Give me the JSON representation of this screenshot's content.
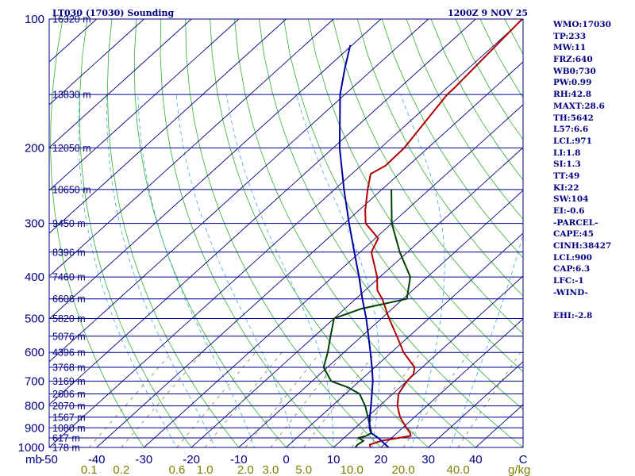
{
  "chart_data": {
    "type": "line",
    "subtype": "skew-T log-P sounding",
    "title": "LT030 (17030) Sounding",
    "time_label": "1200Z  9 NOV 25",
    "xlabel": "°C",
    "x_unit_label": "mb",
    "mixing_ratio_unit": "g/kg",
    "temperature_range_c": [
      -50,
      50
    ],
    "pressure_range_mb": [
      1000,
      100
    ],
    "temperature_ticks": [
      {
        "v": -50,
        "label": "-50"
      },
      {
        "v": -40,
        "label": "-40"
      },
      {
        "v": -30,
        "label": "-30"
      },
      {
        "v": -20,
        "label": "-20"
      },
      {
        "v": -10,
        "label": "-10"
      },
      {
        "v": 0,
        "label": "0"
      },
      {
        "v": 10,
        "label": "10"
      },
      {
        "v": 20,
        "label": "20"
      },
      {
        "v": 30,
        "label": "30"
      },
      {
        "v": 40,
        "label": "40"
      },
      {
        "v": 50,
        "label": "C"
      }
    ],
    "pressure_ticks": [
      {
        "p": 100,
        "label": "100"
      },
      {
        "p": 200,
        "label": "200"
      },
      {
        "p": 300,
        "label": "300"
      },
      {
        "p": 400,
        "label": "400"
      },
      {
        "p": 500,
        "label": "500"
      },
      {
        "p": 600,
        "label": "600"
      },
      {
        "p": 700,
        "label": "700"
      },
      {
        "p": 800,
        "label": "800"
      },
      {
        "p": 900,
        "label": "900"
      },
      {
        "p": 1000,
        "label": "1000"
      }
    ],
    "height_levels": [
      {
        "p": 100,
        "label": "16320 m"
      },
      {
        "p": 150,
        "label": "13830 m"
      },
      {
        "p": 200,
        "label": "12050 m"
      },
      {
        "p": 250,
        "label": "10650 m"
      },
      {
        "p": 300,
        "label": "9450 m"
      },
      {
        "p": 350,
        "label": "8396 m"
      },
      {
        "p": 400,
        "label": "7460 m"
      },
      {
        "p": 450,
        "label": "6606 m"
      },
      {
        "p": 500,
        "label": "5820 m"
      },
      {
        "p": 550,
        "label": "5076 m"
      },
      {
        "p": 600,
        "label": "4396 m"
      },
      {
        "p": 650,
        "label": "3768 m"
      },
      {
        "p": 700,
        "label": "3169 m"
      },
      {
        "p": 750,
        "label": "2606 m"
      },
      {
        "p": 800,
        "label": "2070 m"
      },
      {
        "p": 850,
        "label": "1567 m"
      },
      {
        "p": 900,
        "label": "1080 m"
      },
      {
        "p": 950,
        "label": "617 m"
      },
      {
        "p": 1000,
        "label": "178 m"
      }
    ],
    "mixing_ratio_ticks": [
      {
        "w": 0.1,
        "label": "0.1"
      },
      {
        "w": 0.2,
        "label": "0.2"
      },
      {
        "w": 0.6,
        "label": "0.6"
      },
      {
        "w": 1.0,
        "label": "1.0"
      },
      {
        "w": 2.0,
        "label": "2.0"
      },
      {
        "w": 3.0,
        "label": "3.0"
      },
      {
        "w": 5.0,
        "label": "5.0"
      },
      {
        "w": 10.0,
        "label": "10.0"
      },
      {
        "w": 20.0,
        "label": "20.0"
      },
      {
        "w": 40.0,
        "label": "40.0"
      }
    ],
    "series": [
      {
        "name": "Temperature",
        "color": "#b00000",
        "points": [
          [
            1000,
            17.8
          ],
          [
            985,
            17.0
          ],
          [
            965,
            18.6
          ],
          [
            940,
            23.6
          ],
          [
            925,
            22.8
          ],
          [
            900,
            20.8
          ],
          [
            850,
            17.0
          ],
          [
            800,
            13.8
          ],
          [
            750,
            11.2
          ],
          [
            700,
            10.0
          ],
          [
            675,
            9.8
          ],
          [
            650,
            8.4
          ],
          [
            600,
            2.6
          ],
          [
            550,
            -2.6
          ],
          [
            500,
            -8.4
          ],
          [
            450,
            -14.4
          ],
          [
            430,
            -17.4
          ],
          [
            400,
            -20.6
          ],
          [
            350,
            -27.6
          ],
          [
            325,
            -29.4
          ],
          [
            300,
            -35.5
          ],
          [
            280,
            -38.6
          ],
          [
            250,
            -43.0
          ],
          [
            230,
            -46.0
          ],
          [
            220,
            -44.8
          ],
          [
            200,
            -45.0
          ],
          [
            150,
            -48.4
          ],
          [
            145,
            -48.4
          ],
          [
            100,
            -50.2
          ]
        ]
      },
      {
        "name": "Dewpoint",
        "color": "#004000",
        "points": [
          [
            1000,
            14.6
          ],
          [
            985,
            14.4
          ],
          [
            965,
            14.8
          ],
          [
            950,
            13.0
          ],
          [
            940,
            14.2
          ],
          [
            925,
            14.6
          ],
          [
            900,
            13.2
          ],
          [
            850,
            10.2
          ],
          [
            800,
            7.0
          ],
          [
            750,
            3.0
          ],
          [
            725,
            -0.8
          ],
          [
            700,
            -6.0
          ],
          [
            650,
            -10.8
          ],
          [
            600,
            -13.4
          ],
          [
            550,
            -16.6
          ],
          [
            500,
            -20.0
          ],
          [
            475,
            -16.6
          ],
          [
            450,
            -9.2
          ],
          [
            400,
            -13.6
          ],
          [
            350,
            -21.6
          ],
          [
            300,
            -30.0
          ],
          [
            250,
            -38.0
          ]
        ]
      },
      {
        "name": "Parcel",
        "color": "#0000a0",
        "points": [
          [
            1000,
            21.6
          ],
          [
            950,
            17.2
          ],
          [
            925,
            14.5
          ],
          [
            900,
            13.0
          ],
          [
            850,
            10.6
          ],
          [
            800,
            8.2
          ],
          [
            750,
            5.6
          ],
          [
            700,
            2.8
          ],
          [
            650,
            -0.6
          ],
          [
            600,
            -4.4
          ],
          [
            550,
            -8.6
          ],
          [
            500,
            -13.2
          ],
          [
            450,
            -18.6
          ],
          [
            400,
            -24.4
          ],
          [
            350,
            -31.2
          ],
          [
            300,
            -39.0
          ],
          [
            250,
            -48.0
          ],
          [
            200,
            -58.6
          ],
          [
            150,
            -71.0
          ],
          [
            130,
            -76.2
          ],
          [
            115,
            -80.4
          ]
        ]
      }
    ]
  },
  "indices": [
    "WMO:17030",
    "TP:233",
    "MW:11",
    "FRZ:640",
    "WB0:730",
    "PW:0.99",
    "RH:42.8",
    "MAXT:28.6",
    "TH:5642",
    "L57:6.6",
    "LCL:971",
    "LI:1.8",
    "SI:1.3",
    "TT:49",
    "KI:22",
    "SW:104",
    "EI:-0.6",
    "-PARCEL-",
    "CAPE:45",
    "CINH:38427",
    "LCL:900",
    "CAP:6.3",
    "LFC:-1",
    "-WIND-",
    "",
    "EHI:-2.8"
  ]
}
